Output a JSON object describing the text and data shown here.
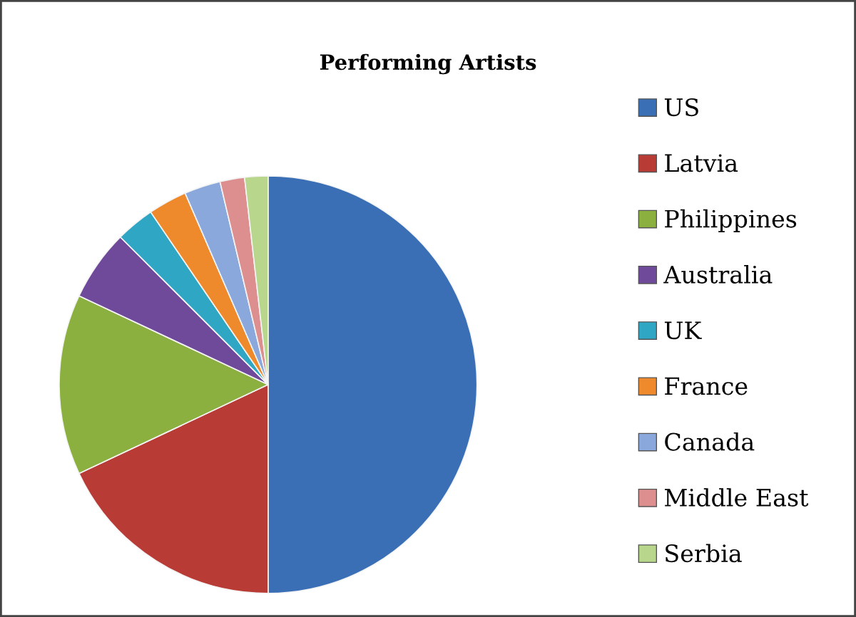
{
  "chart_data": {
    "type": "pie",
    "title": "Performing Artists",
    "categories": [
      "US",
      "Latvia",
      "Philippines",
      "Australia",
      "UK",
      "France",
      "Canada",
      "Middle East",
      "Serbia"
    ],
    "values": [
      50,
      18,
      14,
      5.5,
      3,
      3,
      2.8,
      1.9,
      1.8
    ],
    "colors": [
      "#3a6fb5",
      "#b83b36",
      "#8cb040",
      "#6f4a9a",
      "#2fa6c4",
      "#ee8a2c",
      "#8aa8dc",
      "#dc8f8e",
      "#b8d68c"
    ],
    "legend": "right"
  }
}
